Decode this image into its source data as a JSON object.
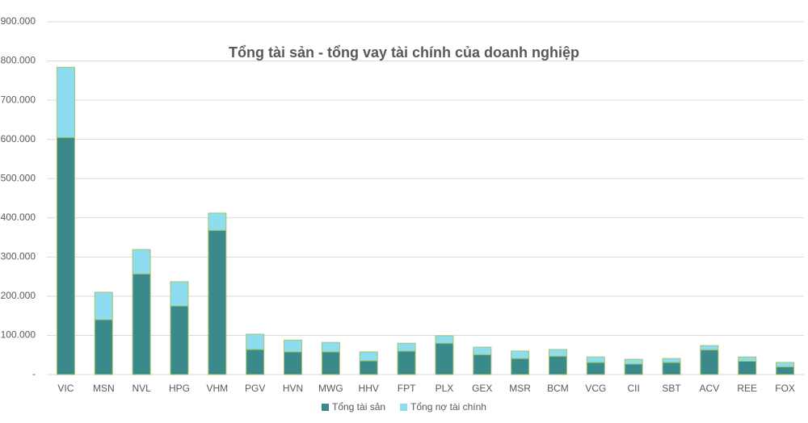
{
  "chart_data": {
    "type": "stacked_bar",
    "title": "Tổng tài sản - tổng vay tài chính của doanh nghiệp",
    "categories": [
      "VIC",
      "MSN",
      "NVL",
      "HPG",
      "VHM",
      "PGV",
      "HVN",
      "MWG",
      "HHV",
      "FPT",
      "PLX",
      "GEX",
      "MSR",
      "BCM",
      "VCG",
      "CII",
      "SBT",
      "ACV",
      "REE",
      "FOX"
    ],
    "series": [
      {
        "name": "Tổng tài sản",
        "color": "#3a8a8c",
        "values": [
          605000,
          140000,
          257000,
          175000,
          368000,
          64000,
          58000,
          58000,
          35000,
          60000,
          80000,
          51000,
          41000,
          47000,
          31000,
          27000,
          31000,
          63000,
          34000,
          20000
        ]
      },
      {
        "name": "Tổng nợ tài chính",
        "color": "#8ddcef",
        "values": [
          179000,
          70000,
          62000,
          62000,
          44000,
          39000,
          30000,
          24000,
          23000,
          20000,
          19000,
          19000,
          19000,
          17000,
          14000,
          12000,
          10000,
          11000,
          11000,
          11000
        ]
      }
    ],
    "ylim": [
      0,
      900000
    ],
    "yticks": [
      {
        "value": 0,
        "label": "-"
      },
      {
        "value": 100000,
        "label": "100.000"
      },
      {
        "value": 200000,
        "label": "200.000"
      },
      {
        "value": 300000,
        "label": "300.000"
      },
      {
        "value": 400000,
        "label": "400.000"
      },
      {
        "value": 500000,
        "label": "500.000"
      },
      {
        "value": 600000,
        "label": "600.000"
      },
      {
        "value": 700000,
        "label": "700.000"
      },
      {
        "value": 800000,
        "label": "800.000"
      },
      {
        "value": 900000,
        "label": "900.000"
      }
    ],
    "grid": true,
    "legend": "bottom"
  }
}
